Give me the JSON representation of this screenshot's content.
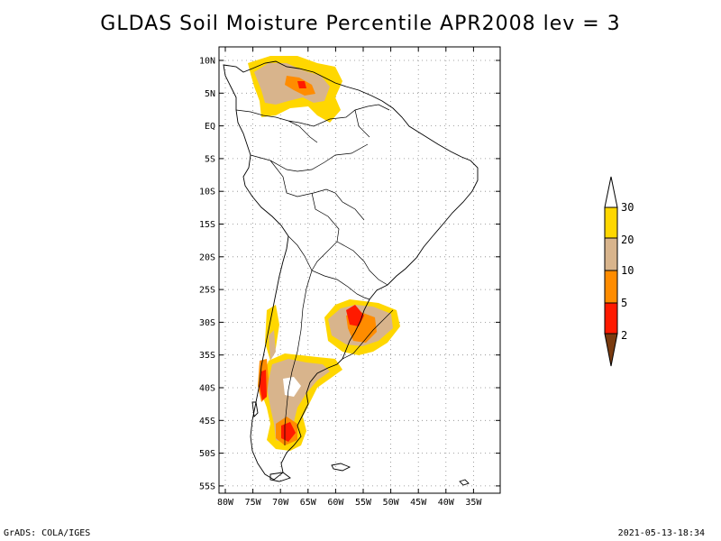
{
  "title": "GLDAS Soil Moisture Percentile APR2008 lev = 3",
  "footer": {
    "left": "GrADS: COLA/IGES",
    "right": "2021-05-13-18:34"
  },
  "axes": {
    "lat_ticks": [
      "10N",
      "5N",
      "EQ",
      "5S",
      "10S",
      "15S",
      "20S",
      "25S",
      "30S",
      "35S",
      "40S",
      "45S",
      "50S",
      "55S"
    ],
    "lon_ticks": [
      "80W",
      "75W",
      "70W",
      "65W",
      "60W",
      "55W",
      "50W",
      "45W",
      "40W",
      "35W"
    ]
  },
  "legend": {
    "labels": [
      "2",
      "5",
      "10",
      "20",
      "30"
    ],
    "colors": {
      "lt2": "#7a3b10",
      "2_5": "#ff1a00",
      "5_10": "#ff8c00",
      "10_20": "#d8b48c",
      "20_30": "#ffd700",
      "gt30": "#ffffff"
    }
  }
}
